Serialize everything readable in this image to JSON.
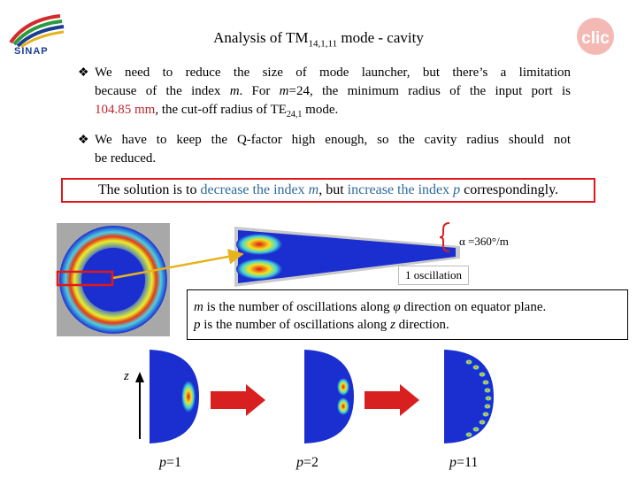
{
  "header": {
    "title_main": "Analysis of TM",
    "title_sub": "14,1,11",
    "title_tail": " mode - cavity",
    "logo_left_text": "SINAP",
    "logo_right_text": "clic"
  },
  "bullets": [
    {
      "l1": "We need to reduce the size of mode launcher, but there’s a limitation",
      "l2a": "because of the index ",
      "l2b": "m",
      "l2c": ". For ",
      "l2d": "m",
      "l2e": "=24, the minimum radius of the input port is",
      "l3a": "104.85 mm",
      "l3b": ", the cut-off radius of TE",
      "l3c": "24,1",
      "l3d": " mode."
    },
    {
      "l1": "We have to keep the Q-factor high enough, so the cavity radius should not",
      "l2": "be reduced."
    }
  ],
  "solution": {
    "part1": "The solution is to ",
    "part2": "decrease the index ",
    "part3": "m",
    "part4": ", but ",
    "part5": "increase the index ",
    "part6": "p",
    "part7": " correspondingly."
  },
  "figure": {
    "alpha_label": "α =360°/m",
    "oscillation_label": "1 oscillation",
    "explain_line1_var": "m",
    "explain_line1": " is the number of oscillations along ",
    "explain_line1_var2": "φ",
    "explain_line1_tail": " direction on equator plane.",
    "explain_line2_var": "p",
    "explain_line2": " is the number of oscillations along ",
    "explain_line2_var2": "z",
    "explain_line2_tail": " direction.",
    "z_label": "z",
    "p_labels": [
      {
        "var": "p",
        "val": "=1"
      },
      {
        "var": "p",
        "val": "=2"
      },
      {
        "var": "p",
        "val": "=11"
      }
    ]
  },
  "colors": {
    "highlight_red": "#c0262d",
    "highlight_blue": "#2e6a9b",
    "box_border": "#e0161d",
    "field_blue": "#1b2fd1",
    "arrow_red": "#d92020"
  }
}
